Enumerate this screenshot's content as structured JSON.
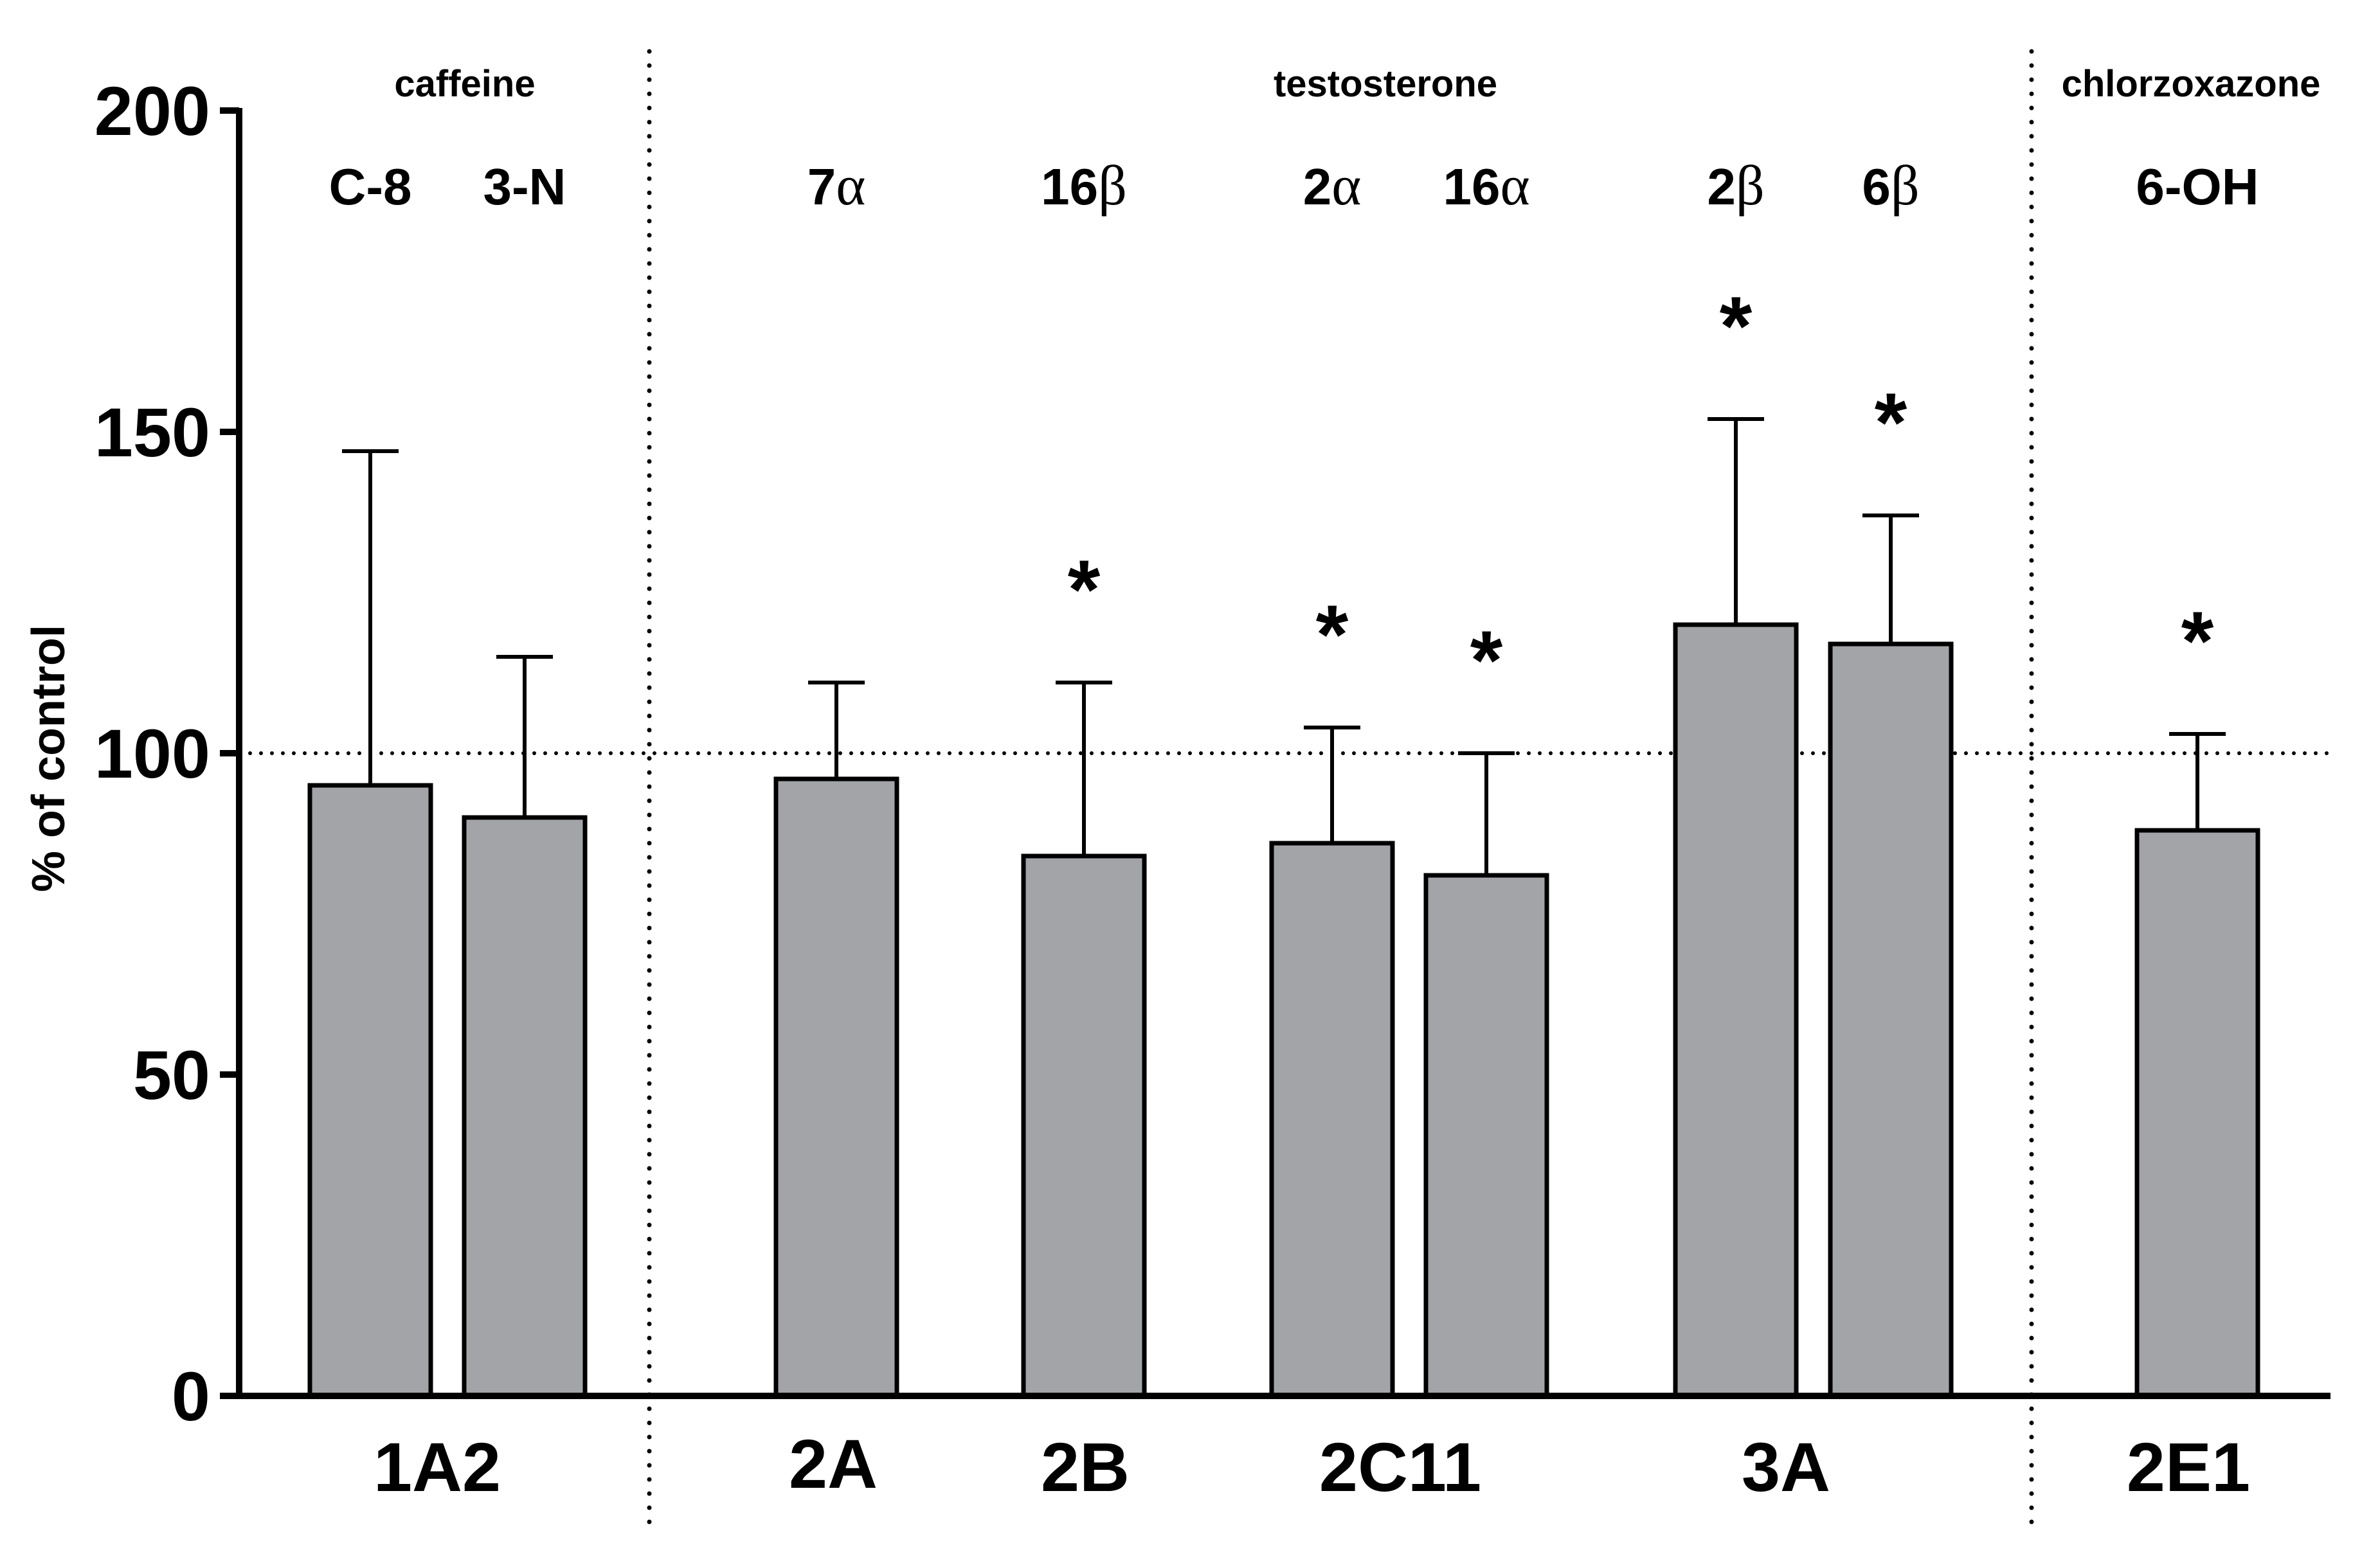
{
  "chart_data": {
    "type": "bar",
    "ylabel": "% of control",
    "ylim": [
      0,
      200
    ],
    "yticks": [
      "0",
      "50",
      "100",
      "150",
      "200"
    ],
    "reference_line": 100,
    "colors": {
      "bar": "#a3a4a8",
      "stroke": "#000000"
    },
    "substrates": [
      {
        "label": "caffeine"
      },
      {
        "label": "testosterone"
      },
      {
        "label": "chlorzoxazone"
      }
    ],
    "groups": [
      {
        "label": "1A2"
      },
      {
        "label": "2A"
      },
      {
        "label": "2B"
      },
      {
        "label": "2C11"
      },
      {
        "label": "3A"
      },
      {
        "label": "2E1"
      }
    ],
    "bars": [
      {
        "metabolite": "C-8",
        "value": 95,
        "error": 52,
        "significant": false
      },
      {
        "metabolite": "3-N",
        "value": 90,
        "error": 25,
        "significant": false
      },
      {
        "metabolite": "7α",
        "value": 96,
        "error": 15,
        "significant": false
      },
      {
        "metabolite": "16β",
        "value": 84,
        "error": 27,
        "significant": true
      },
      {
        "metabolite": "2α",
        "value": 86,
        "error": 18,
        "significant": true
      },
      {
        "metabolite": "16α",
        "value": 81,
        "error": 19,
        "significant": true
      },
      {
        "metabolite": "2β",
        "value": 120,
        "error": 32,
        "significant": true
      },
      {
        "metabolite": "6β",
        "value": 117,
        "error": 20,
        "significant": true
      },
      {
        "metabolite": "6-OH",
        "value": 88,
        "error": 15,
        "significant": true
      }
    ],
    "significance_marker": "*"
  }
}
